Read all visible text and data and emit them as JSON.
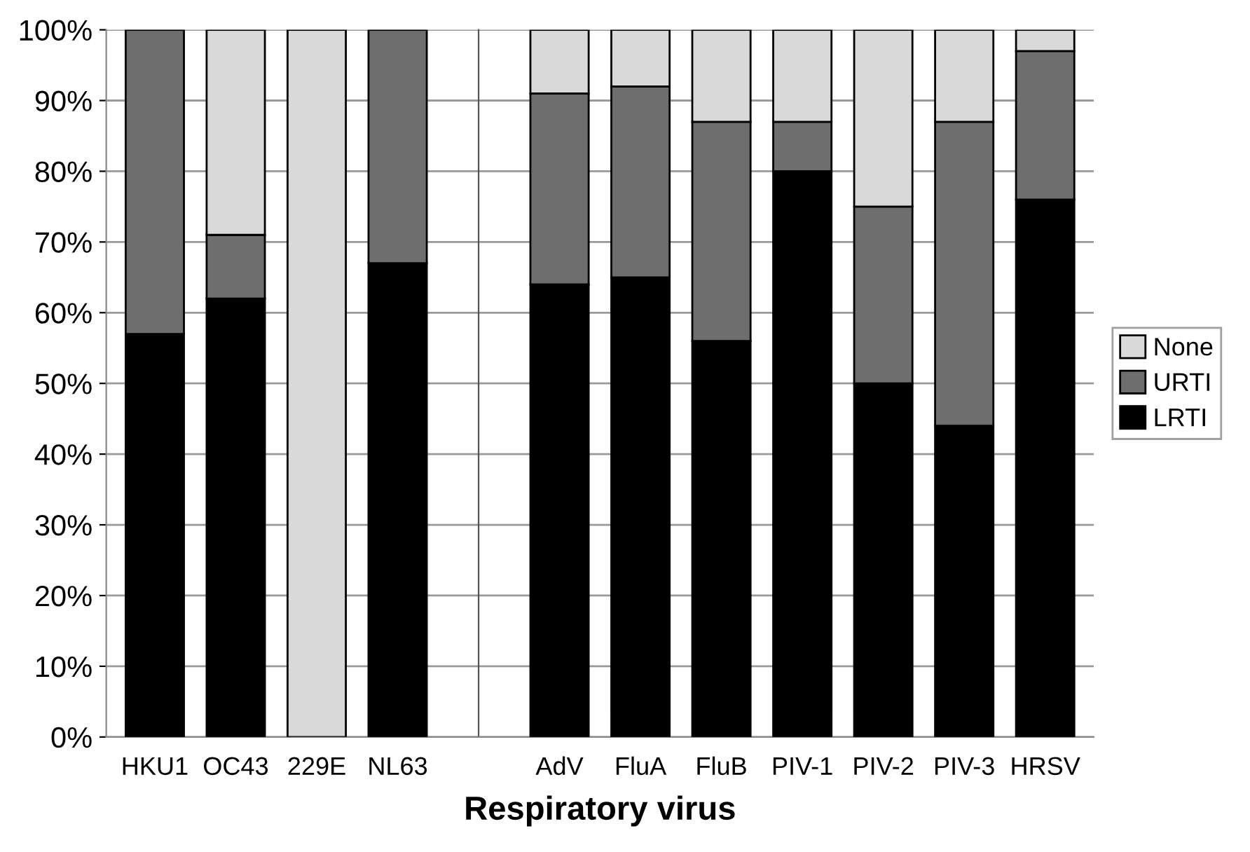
{
  "chart_data": [
    {
      "type": "bar",
      "stacked": true,
      "categories": [
        "HKU1",
        "OC43",
        "229E",
        "NL63"
      ],
      "series": [
        {
          "color": "#000000",
          "values": [
            57,
            62,
            0,
            67
          ]
        },
        {
          "color": "#6e6e6e",
          "values": [
            43,
            9,
            0,
            33
          ]
        },
        {
          "color": "#d9d9d9",
          "values": [
            0,
            29,
            100,
            0
          ]
        }
      ],
      "ylim": [
        0,
        100
      ],
      "yticks": [
        {
          "value": 0,
          "label": "0%"
        },
        {
          "value": 10,
          "label": "10%"
        },
        {
          "value": 20,
          "label": "20%"
        },
        {
          "value": 30,
          "label": "30%"
        },
        {
          "value": 40,
          "label": "40%"
        },
        {
          "value": 50,
          "label": "50%"
        },
        {
          "value": 60,
          "label": "60%"
        },
        {
          "value": 70,
          "label": "70%"
        },
        {
          "value": 80,
          "label": "80%"
        },
        {
          "value": 90,
          "label": "90%"
        },
        {
          "value": 100,
          "label": "100%"
        }
      ],
      "grid": "y"
    },
    {
      "type": "bar",
      "stacked": true,
      "xlabel": "Respiratory virus",
      "categories": [
        "AdV",
        "FluA",
        "FluB",
        "PIV-1",
        "PIV-2",
        "PIV-3",
        "HRSV"
      ],
      "series": [
        {
          "name": "LRTI",
          "color": "#000000",
          "values": [
            64,
            65,
            56,
            80,
            50,
            44,
            76
          ]
        },
        {
          "name": "URTI",
          "color": "#6e6e6e",
          "values": [
            27,
            27,
            31,
            7,
            25,
            43,
            21
          ]
        },
        {
          "name": "None",
          "color": "#d9d9d9",
          "values": [
            9,
            8,
            13,
            13,
            25,
            13,
            3
          ]
        }
      ],
      "ylim": [
        0,
        100
      ],
      "yticks": [
        {
          "value": 0,
          "label": null
        },
        {
          "value": 10,
          "label": null
        },
        {
          "value": 20,
          "label": null
        },
        {
          "value": 30,
          "label": null
        },
        {
          "value": 40,
          "label": null
        },
        {
          "value": 50,
          "label": null
        },
        {
          "value": 60,
          "label": null
        },
        {
          "value": 70,
          "label": null
        },
        {
          "value": 80,
          "label": null
        },
        {
          "value": 90,
          "label": null
        },
        {
          "value": 100,
          "label": null
        }
      ],
      "tick_labels": "x",
      "grid": "y",
      "legend": "right"
    }
  ]
}
